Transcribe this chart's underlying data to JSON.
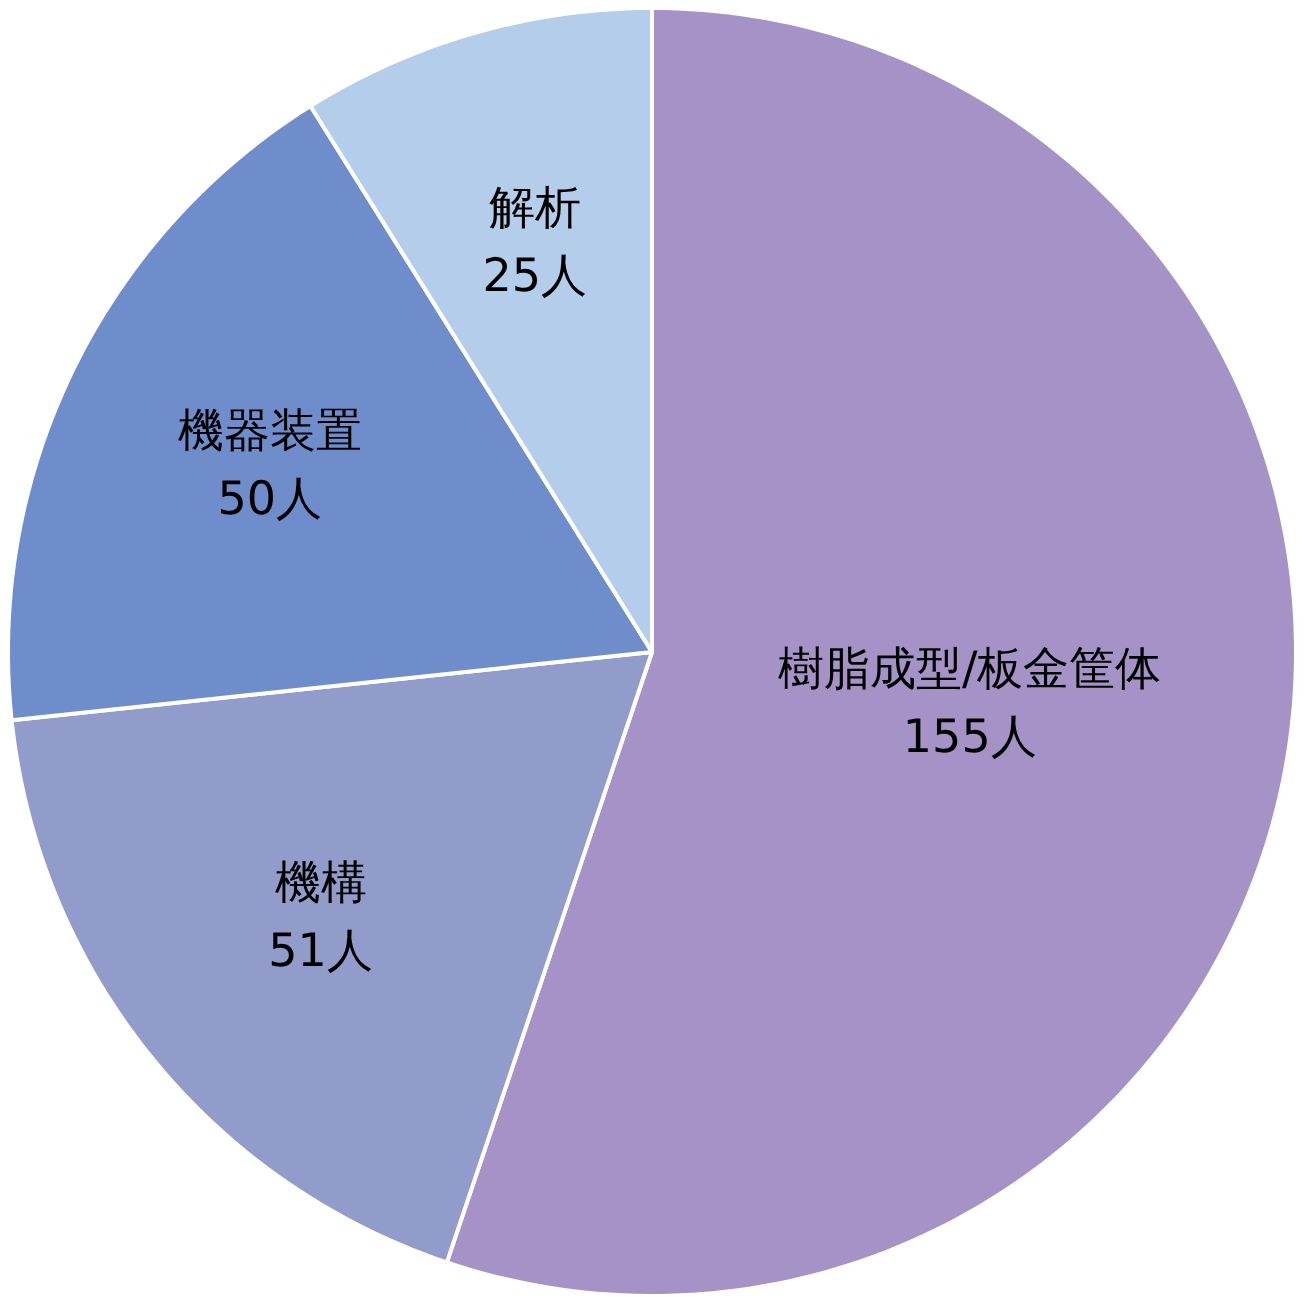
{
  "chart_data": {
    "type": "pie",
    "categories": [
      "樹脂成型/板金筐体",
      "機構",
      "機器装置",
      "解析"
    ],
    "values": [
      155,
      51,
      50,
      25
    ],
    "colors": [
      "#a593c7",
      "#919ccb",
      "#6f8ccb",
      "#b3cdeb"
    ],
    "value_labels": [
      "155人",
      "51人",
      "50人",
      "25人"
    ]
  }
}
